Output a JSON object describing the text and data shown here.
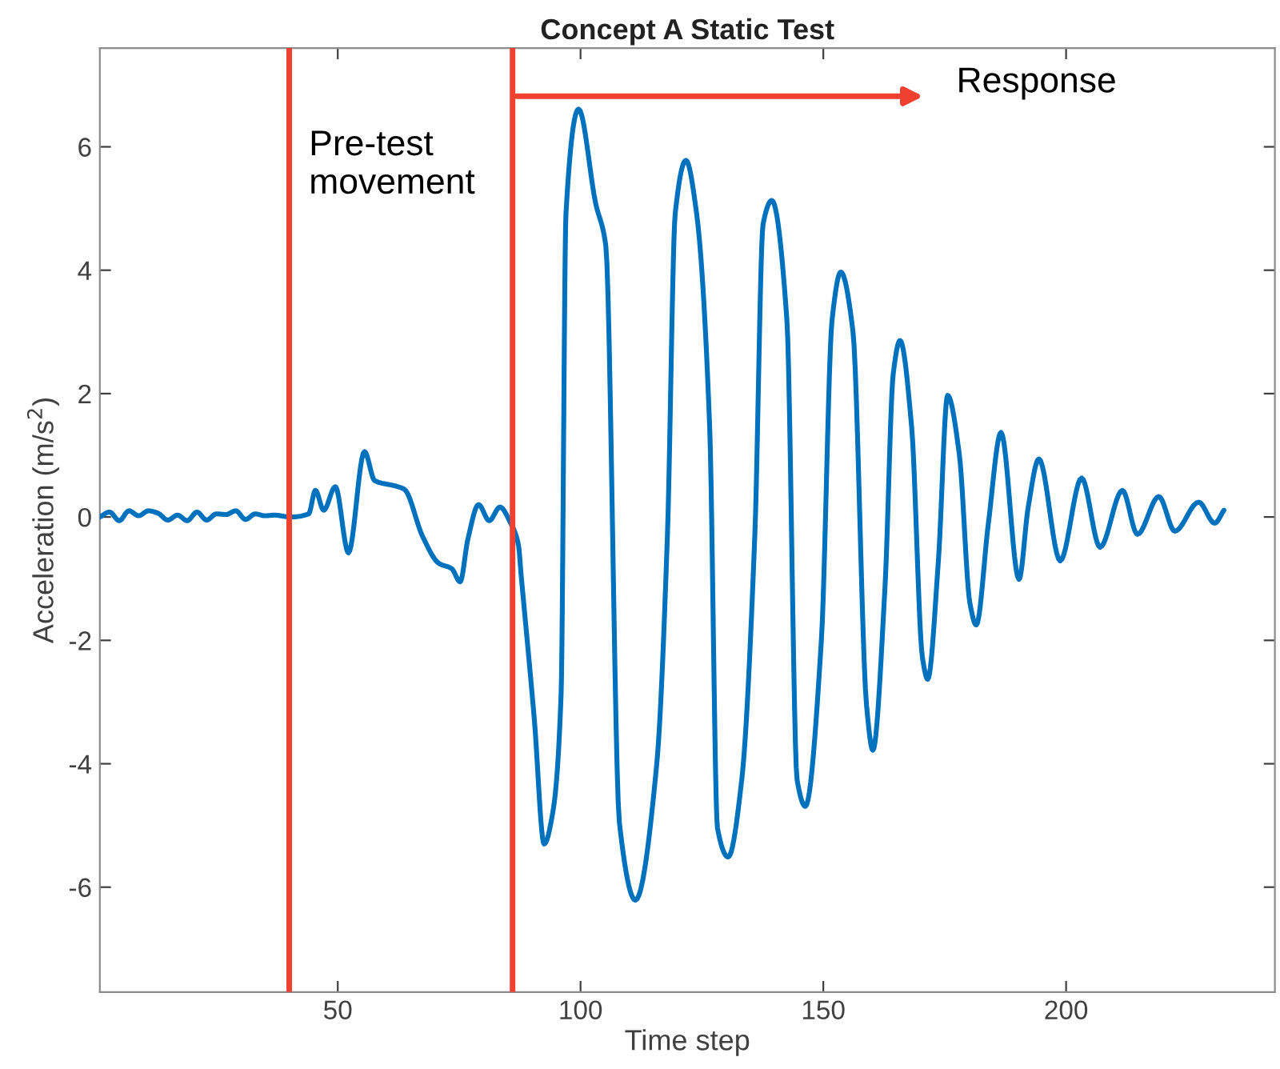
{
  "chart_data": {
    "type": "line",
    "title": "Concept A Static Test",
    "xlabel": "Time step",
    "ylabel": "Acceleration (m/s$^{2}$)",
    "xlim": [
      1,
      243
    ],
    "ylim": [
      -7.7,
      7.6
    ],
    "xticks": [
      50,
      100,
      150,
      200
    ],
    "yticks": [
      -6,
      -4,
      -2,
      0,
      2,
      4,
      6
    ],
    "grid": false,
    "marker": "none",
    "line_style": "solid",
    "series": [
      {
        "color": "#0072bd",
        "x": [
          1,
          3,
          5,
          7,
          9,
          11,
          13,
          15,
          17,
          19,
          21,
          23,
          25,
          27,
          29,
          31,
          33,
          35,
          37,
          40.2,
          44,
          45.4,
          47.1,
          49.5,
          52.2,
          55.5,
          57.6,
          62,
          63.7,
          67.5,
          70.8,
          73.5,
          75.2,
          76.8,
          79,
          81.2,
          83.4,
          85.6,
          87.2,
          87.8,
          90.5,
          92.5,
          94.3,
          96,
          97,
          99.6,
          103.1,
          105.2,
          108,
          111.3,
          115.7,
          117.9,
          119.5,
          121.7,
          123.9,
          126.6,
          128.2,
          130.4,
          133.2,
          135.9,
          137.6,
          139.4,
          142.5,
          144.6,
          146.3,
          149.6,
          151.8,
          153.6,
          156.1,
          158.9,
          160.2,
          162.7,
          164.4,
          165.8,
          168.2,
          170.4,
          171.5,
          173.7,
          175.6,
          178,
          180.2,
          181.5,
          184,
          186.6,
          190.3,
          192.2,
          194.4,
          198.8,
          203.2,
          207,
          211.6,
          214.7,
          219.1,
          222.4,
          227.3,
          230.6,
          232.5
        ],
        "values": [
          0,
          0.08,
          -0.06,
          0.1,
          0.02,
          0.1,
          0.06,
          -0.05,
          0.03,
          -0.06,
          0.08,
          -0.05,
          0.05,
          0.04,
          0.1,
          -0.04,
          0.05,
          0.02,
          0.03,
          0,
          0.05,
          0.43,
          0.11,
          0.49,
          -0.58,
          1.06,
          0.59,
          0.5,
          0.45,
          -0.32,
          -0.75,
          -0.84,
          -1.05,
          -0.36,
          0.2,
          -0.06,
          0.16,
          -0.1,
          -0.45,
          -0.97,
          -3.3,
          -5.3,
          -4.78,
          -2.87,
          4.92,
          6.61,
          5.09,
          4.4,
          -4.95,
          -6.21,
          -4.0,
          -0.28,
          4.92,
          5.78,
          4.92,
          1.45,
          -5.04,
          -5.51,
          -4.26,
          -0.28,
          4.75,
          5.13,
          3.19,
          -4.26,
          -4.69,
          -2.0,
          3.19,
          3.97,
          3.01,
          -3.05,
          -3.78,
          -1.14,
          2.32,
          2.86,
          1.45,
          -2.27,
          -2.63,
          -0.71,
          1.97,
          1.02,
          -1.4,
          -1.75,
          -0.1,
          1.37,
          -1.01,
          0.16,
          0.94,
          -0.71,
          0.63,
          -0.49,
          0.43,
          -0.28,
          0.33,
          -0.23,
          0.24,
          -0.1,
          0.11
        ]
      }
    ],
    "ref_lines": [
      {
        "axis": "x",
        "value": 40,
        "color": "#f0402f",
        "line_style": "solid"
      },
      {
        "axis": "x",
        "value": 86,
        "color": "#f0402f",
        "line_style": "solid"
      }
    ],
    "annotations": [
      "Pre-test\nmovement",
      "Response"
    ]
  }
}
